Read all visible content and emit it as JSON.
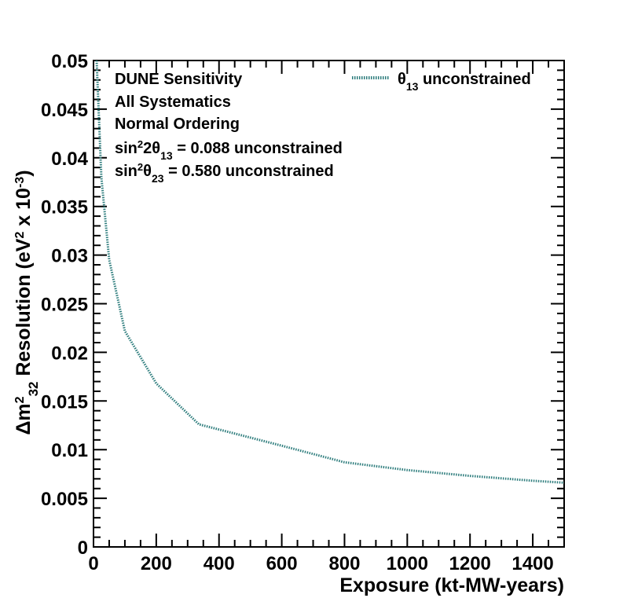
{
  "chart_data": {
    "type": "line",
    "xlabel": "Exposure (kt-MW-years)",
    "ylabel": {
      "prefix": "Δm",
      "sup": "2",
      "sub": "32",
      "text1": " Resolution (eV",
      "sup2": "2",
      "text2": " x 10",
      "sup3": "-3",
      "text3": ")"
    },
    "xlim": [
      0,
      1500
    ],
    "ylim": [
      0,
      0.05
    ],
    "xticks": [
      0,
      200,
      400,
      600,
      800,
      1000,
      1200,
      1400
    ],
    "xtick_labels": [
      "0",
      "200",
      "400",
      "600",
      "800",
      "1000",
      "1200",
      "1400"
    ],
    "yticks": [
      0,
      0.005,
      0.01,
      0.015,
      0.02,
      0.025,
      0.03,
      0.035,
      0.04,
      0.045,
      0.05
    ],
    "ytick_labels": [
      "0",
      "0.005",
      "0.01",
      "0.015",
      "0.02",
      "0.025",
      "0.03",
      "0.035",
      "0.04",
      "0.045",
      "0.05"
    ],
    "annotations": [
      {
        "parts": [
          [
            "t",
            "DUNE Sensitivity"
          ]
        ]
      },
      {
        "parts": [
          [
            "t",
            "All Systematics"
          ]
        ]
      },
      {
        "parts": [
          [
            "t",
            "Normal Ordering"
          ]
        ]
      },
      {
        "parts": [
          [
            "t",
            "sin"
          ],
          [
            "sup",
            "2"
          ],
          [
            "t",
            "2θ"
          ],
          [
            "sub",
            "13"
          ],
          [
            "t",
            " = 0.088 unconstrained"
          ]
        ]
      },
      {
        "parts": [
          [
            "t",
            "sin"
          ],
          [
            "sup",
            "2"
          ],
          [
            "t",
            "θ"
          ],
          [
            "sub",
            "23"
          ],
          [
            "t",
            " = 0.580 unconstrained"
          ]
        ]
      }
    ],
    "legend": {
      "position": "top-right",
      "entries": [
        {
          "parts": [
            [
              "t",
              "θ"
            ],
            [
              "sub",
              "13"
            ],
            [
              "t",
              " unconstrained"
            ]
          ],
          "color": "#2e7d7d"
        }
      ]
    },
    "series": [
      {
        "color": "#2e7d7d",
        "style": "dotted",
        "x": [
          10,
          25,
          50,
          100,
          200,
          336,
          600,
          800,
          1000,
          1200,
          1400,
          1500
        ],
        "y": [
          0.05,
          0.038,
          0.0295,
          0.0222,
          0.0168,
          0.0126,
          0.0104,
          0.0087,
          0.0079,
          0.0073,
          0.0068,
          0.0066
        ]
      }
    ]
  }
}
